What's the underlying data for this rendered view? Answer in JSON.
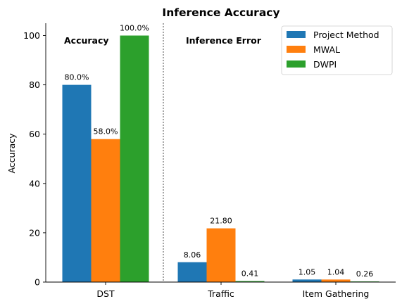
{
  "chart_data": {
    "type": "bar",
    "title": "Inference Accuracy",
    "xlabel": "",
    "ylabel": "Accuracy",
    "ylim": [
      0,
      105
    ],
    "yticks": [
      0,
      20,
      40,
      60,
      80,
      100
    ],
    "categories": [
      "DST",
      "Traffic",
      "Item Gathering"
    ],
    "series": [
      {
        "name": "Project Method",
        "color": "#1f77b4",
        "values": [
          80.0,
          8.06,
          1.05
        ],
        "labels": [
          "80.0%",
          "8.06",
          "1.05"
        ]
      },
      {
        "name": "MWAL",
        "color": "#ff7f0e",
        "values": [
          58.0,
          21.8,
          1.04
        ],
        "labels": [
          "58.0%",
          "21.80",
          "1.04"
        ]
      },
      {
        "name": "DWPI",
        "color": "#2ca02c",
        "values": [
          100.0,
          0.41,
          0.26
        ],
        "labels": [
          "100.0%",
          "0.41",
          "0.26"
        ]
      }
    ],
    "section_labels": [
      "Accuracy",
      "Inference Error"
    ],
    "divider": "dashed vertical line between DST and Traffic",
    "legend_position": "top-right",
    "grid": false
  }
}
